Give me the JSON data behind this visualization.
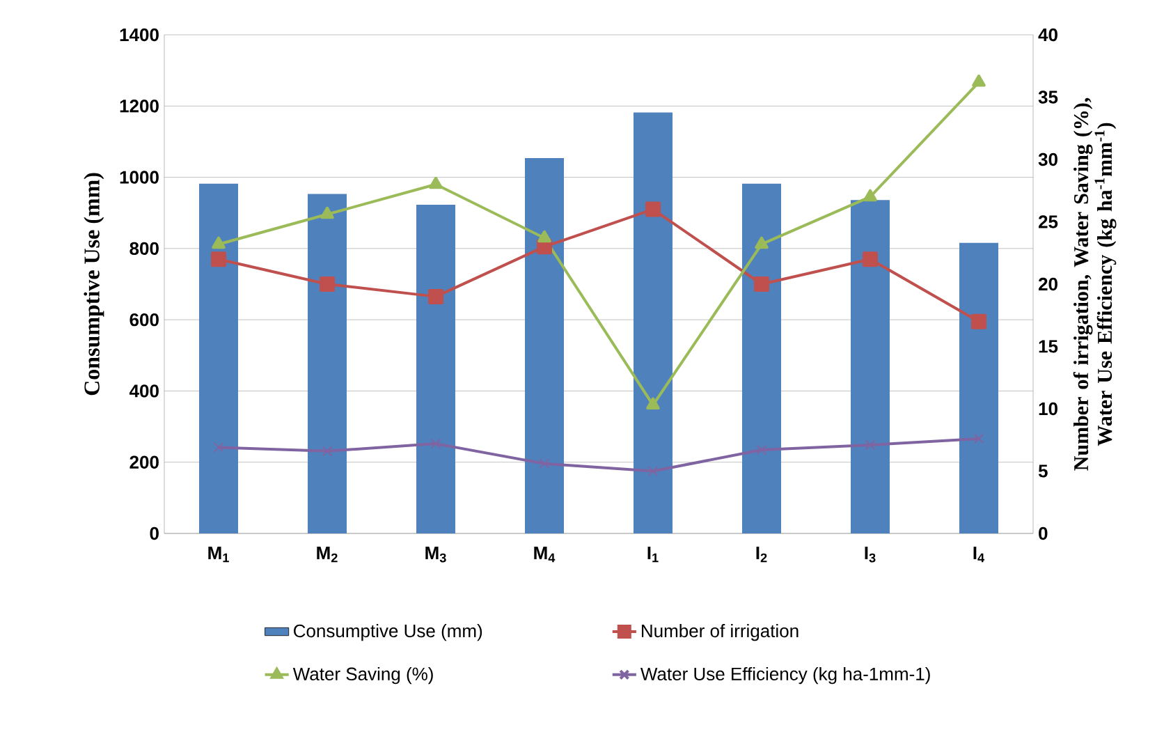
{
  "chart_data": {
    "type": "bar",
    "categories": [
      "M$_{1}$",
      "M$_{2}$",
      "M$_{3}$",
      "M$_{4}$",
      "I$_{1}$",
      "I$_{2}$",
      "I$_{3}$",
      "I$_{4}$"
    ],
    "ylabel": "Consumptive Use (mm)",
    "y2label": "Number of irrigation, Water Saving (%), Water Use Efficiency (kg ha$^{-1}$mm$^{-1}$)",
    "ylim": [
      0,
      1400
    ],
    "yticks": [
      0,
      200,
      400,
      600,
      800,
      1000,
      1200,
      1400
    ],
    "y2lim": [
      0,
      40
    ],
    "y2ticks": [
      0,
      5,
      10,
      15,
      20,
      25,
      30,
      35,
      40
    ],
    "grid": "y",
    "legend": "bottom",
    "series": [
      {
        "name": "Consumptive Use (mm)",
        "color": "#4f81bd",
        "values": [
          982,
          953,
          923,
          1054,
          1182,
          982,
          936,
          816
        ]
      },
      {
        "name": "Number of irrigation",
        "type": "line",
        "axis": "y2",
        "color": "#c0504d",
        "marker": "square",
        "values": [
          22,
          20,
          19,
          23,
          26,
          20,
          22,
          17
        ]
      },
      {
        "name": "Water Saving (%)",
        "type": "line",
        "axis": "y2",
        "color": "#9bbb59",
        "marker": "triangle",
        "values": [
          23.2,
          25.6,
          28.0,
          23.7,
          10.3,
          23.2,
          27.0,
          36.2
        ]
      },
      {
        "name": "Water Use Efficiency (kg ha-1mm-1)",
        "type": "line",
        "axis": "y2",
        "color": "#8064a2",
        "marker": "cross",
        "values": [
          6.9,
          6.6,
          7.2,
          5.6,
          5.0,
          6.7,
          7.1,
          7.6
        ]
      }
    ]
  }
}
